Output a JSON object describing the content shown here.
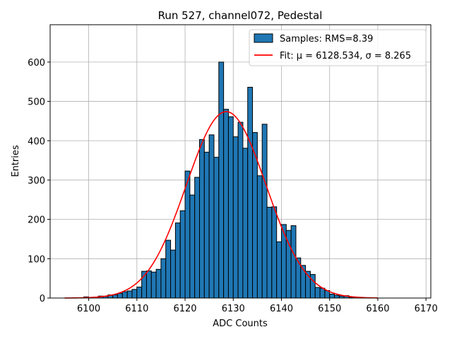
{
  "chart_data": {
    "type": "bar",
    "title": "Run 527, channel072, Pedestal",
    "xlabel": "ADC Counts",
    "ylabel": "Entries",
    "xlim": [
      6092,
      6171
    ],
    "ylim": [
      0,
      695
    ],
    "grid": true,
    "legend_position": "top-right",
    "x_ticks": [
      6100,
      6110,
      6120,
      6130,
      6140,
      6150,
      6160,
      6170
    ],
    "y_ticks": [
      0,
      100,
      200,
      300,
      400,
      500,
      600
    ],
    "histogram": {
      "name": "Samples: RMS=8.39",
      "color": "#1f77b4",
      "edge_color": "#000000",
      "bin_start": 6095,
      "bin_width": 1,
      "counts": [
        0,
        0,
        0,
        0,
        3,
        0,
        0,
        5,
        4,
        8,
        8,
        12,
        16,
        18,
        22,
        28,
        68,
        69,
        66,
        73,
        100,
        147,
        122,
        191,
        222,
        323,
        262,
        307,
        403,
        371,
        415,
        358,
        600,
        480,
        461,
        410,
        447,
        381,
        536,
        421,
        311,
        442,
        231,
        232,
        143,
        187,
        172,
        184,
        102,
        83,
        68,
        60,
        27,
        25,
        19,
        10,
        7,
        5,
        6,
        2,
        1,
        0,
        0,
        0,
        0,
        0,
        0,
        0,
        0,
        0,
        0,
        0
      ]
    },
    "fit": {
      "name": "Fit: μ = 6128.534, σ = 8.265",
      "color": "#ff0000",
      "mu": 6128.534,
      "sigma": 8.265,
      "amplitude": 474,
      "x_range": [
        6095,
        6160
      ]
    }
  }
}
